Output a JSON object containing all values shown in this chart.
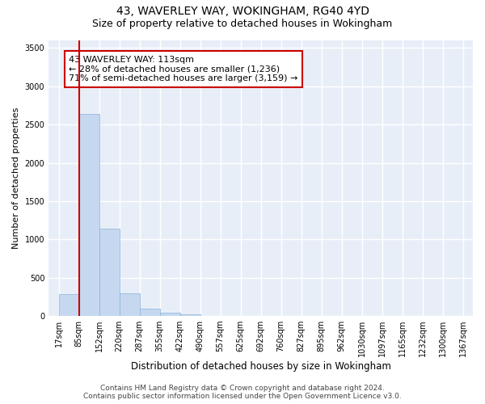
{
  "title_line1": "43, WAVERLEY WAY, WOKINGHAM, RG40 4YD",
  "title_line2": "Size of property relative to detached houses in Wokingham",
  "xlabel": "Distribution of detached houses by size in Wokingham",
  "ylabel": "Number of detached properties",
  "bin_edges": [
    "17sqm",
    "85sqm",
    "152sqm",
    "220sqm",
    "287sqm",
    "355sqm",
    "422sqm",
    "490sqm",
    "557sqm",
    "625sqm",
    "692sqm",
    "760sqm",
    "827sqm",
    "895sqm",
    "962sqm",
    "1030sqm",
    "1097sqm",
    "1165sqm",
    "1232sqm",
    "1300sqm",
    "1367sqm"
  ],
  "bar_heights": [
    290,
    2640,
    1140,
    295,
    95,
    40,
    25,
    0,
    0,
    0,
    0,
    0,
    0,
    0,
    0,
    0,
    0,
    0,
    0,
    0
  ],
  "bar_color": "#c5d8f0",
  "bar_edge_color": "#8ab4d8",
  "ylim": [
    0,
    3600
  ],
  "yticks": [
    0,
    500,
    1000,
    1500,
    2000,
    2500,
    3000,
    3500
  ],
  "property_label": "43 WAVERLEY WAY: 113sqm",
  "annotation_line1": "← 28% of detached houses are smaller (1,236)",
  "annotation_line2": "71% of semi-detached houses are larger (3,159) →",
  "vline_bin_edge": 1,
  "footer_line1": "Contains HM Land Registry data © Crown copyright and database right 2024.",
  "footer_line2": "Contains public sector information licensed under the Open Government Licence v3.0.",
  "background_color": "#e8eef8",
  "grid_color": "#ffffff",
  "vline_color": "#cc0000",
  "annotation_box_color": "#cc0000",
  "title_fontsize": 10,
  "subtitle_fontsize": 9,
  "tick_fontsize": 7,
  "ylabel_fontsize": 8,
  "xlabel_fontsize": 8.5,
  "annotation_fontsize": 8,
  "footer_fontsize": 6.5
}
